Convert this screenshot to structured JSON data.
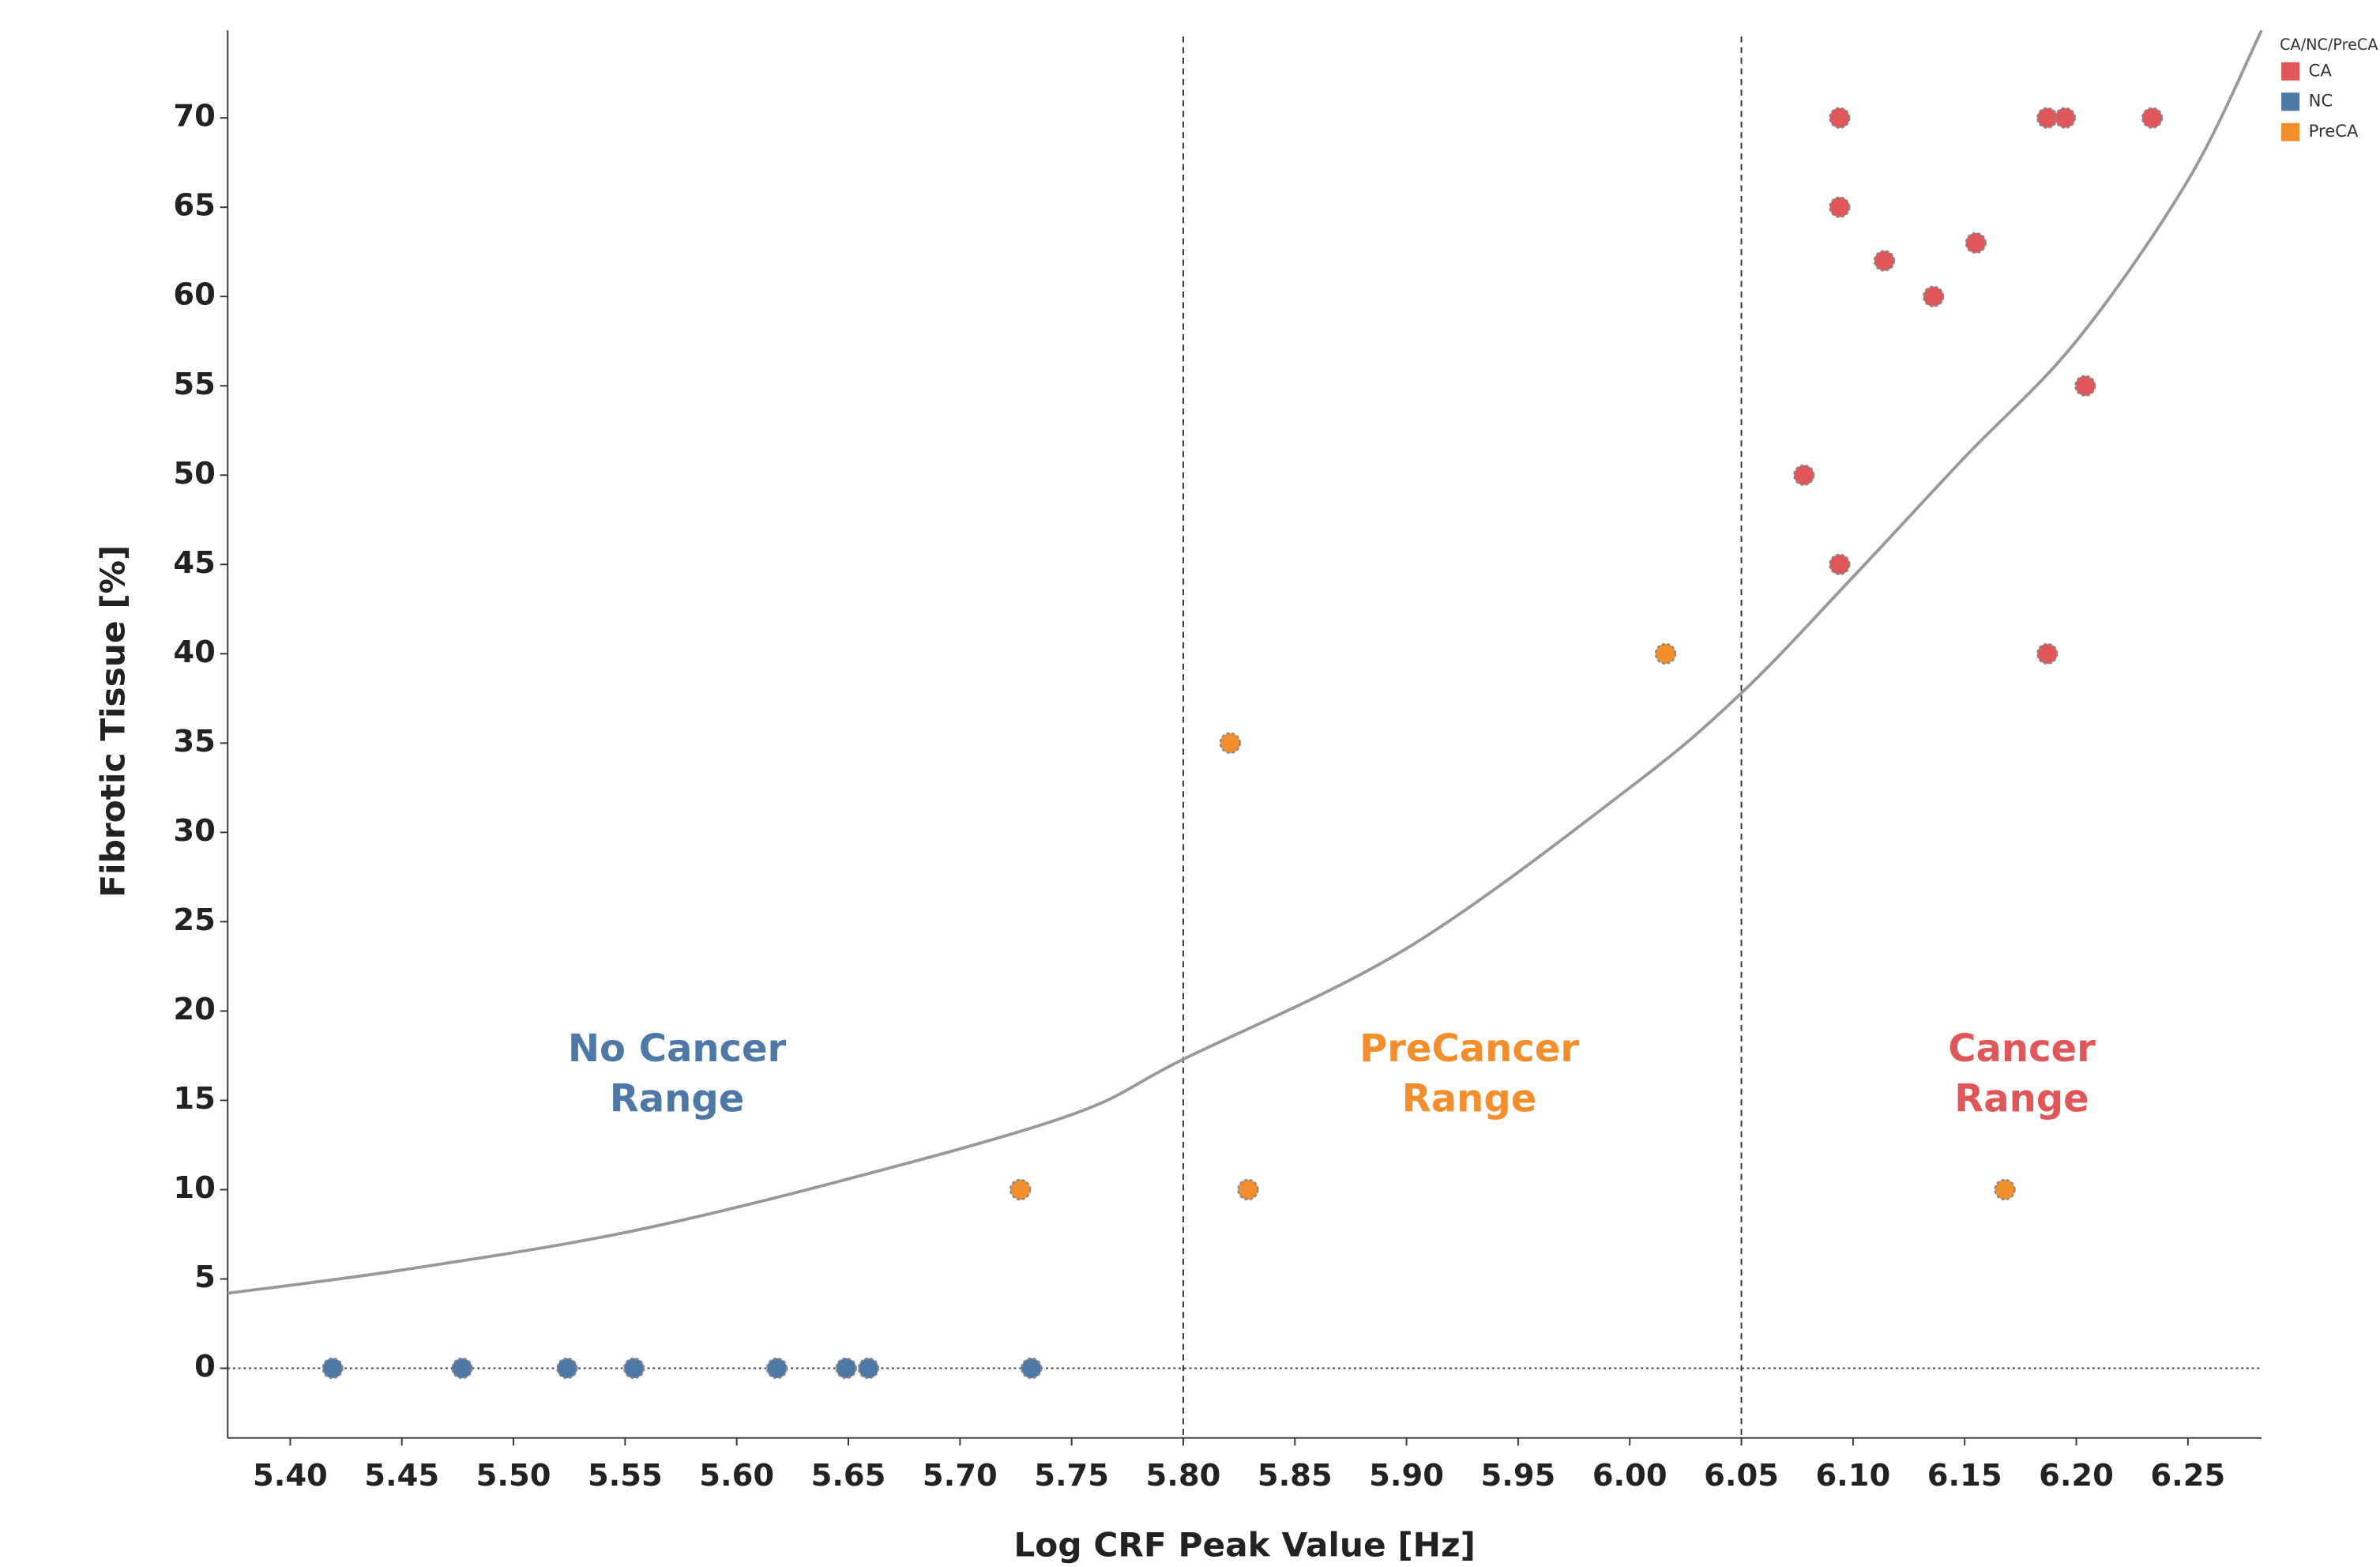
{
  "chart_data": {
    "type": "scatter",
    "x_label": "Log CRF Peak Value [Hz]",
    "y_label": "Fibrotic Tissue [%]",
    "xlim": [
      5.372,
      6.283
    ],
    "ylim": [
      -3.9,
      74.9
    ],
    "xticks": [
      {
        "value": 5.4,
        "label": "5.40"
      },
      5.45,
      {
        "value": 5.5,
        "label": "5.50"
      },
      5.55,
      {
        "value": 5.6,
        "label": "5.60"
      },
      5.65,
      {
        "value": 5.7,
        "label": "5.70"
      },
      5.75,
      {
        "value": 5.8,
        "label": "5.80"
      },
      5.85,
      {
        "value": 5.9,
        "label": "5.90"
      },
      5.95,
      {
        "value": 6,
        "label": "6.00"
      },
      6.05,
      {
        "value": 6.1,
        "label": "6.10"
      },
      6.15,
      {
        "value": 6.2,
        "label": "6.20"
      },
      6.25
    ],
    "yticks": [
      0,
      5,
      10,
      15,
      20,
      25,
      30,
      35,
      40,
      45,
      50,
      55,
      60,
      65,
      70
    ],
    "legend_title": "CA/NC/PreCA",
    "legend_position": "top-right",
    "series": [
      {
        "name": "CA",
        "color": "#e15759",
        "x": [
          6.094,
          6.094,
          6.114,
          6.136,
          6.155,
          6.187,
          6.195,
          6.234,
          6.204,
          6.078,
          6.094,
          6.187
        ],
        "values": [
          70,
          65,
          62,
          60,
          63,
          70,
          70,
          70,
          55,
          50,
          45,
          40
        ]
      },
      {
        "name": "NC",
        "color": "#4e79a7",
        "x": [
          5.419,
          5.477,
          5.524,
          5.554,
          5.618,
          5.649,
          5.659,
          5.732
        ],
        "values": [
          0,
          0,
          0,
          0,
          0,
          0,
          0,
          0
        ]
      },
      {
        "name": "PreCA",
        "color": "#f28e2b",
        "x": [
          5.727,
          5.821,
          5.829,
          6.016,
          6.168
        ],
        "values": [
          10,
          35,
          10,
          40,
          10
        ]
      }
    ],
    "fit_curve": {
      "color": "#999999",
      "x": [
        5.372,
        5.45,
        5.55,
        5.65,
        5.75,
        5.8,
        5.9,
        6.0,
        6.05,
        6.1,
        6.15,
        6.2,
        6.25,
        6.283
      ],
      "values": [
        4.2,
        5.5,
        7.6,
        10.6,
        14.2,
        17.3,
        23.5,
        32.5,
        37.8,
        44.3,
        51.0,
        57.5,
        66.5,
        74.9
      ]
    },
    "thresholds": [
      5.8,
      6.05
    ],
    "reference_line": 0,
    "annotations": [
      {
        "lines": [
          "No Cancer",
          "Range"
        ],
        "color": "#4e79a7"
      },
      {
        "lines": [
          "PreCancer",
          "Range"
        ],
        "color": "#f28e2b"
      },
      {
        "lines": [
          "Cancer",
          "Range"
        ],
        "color": "#e15759"
      }
    ]
  }
}
